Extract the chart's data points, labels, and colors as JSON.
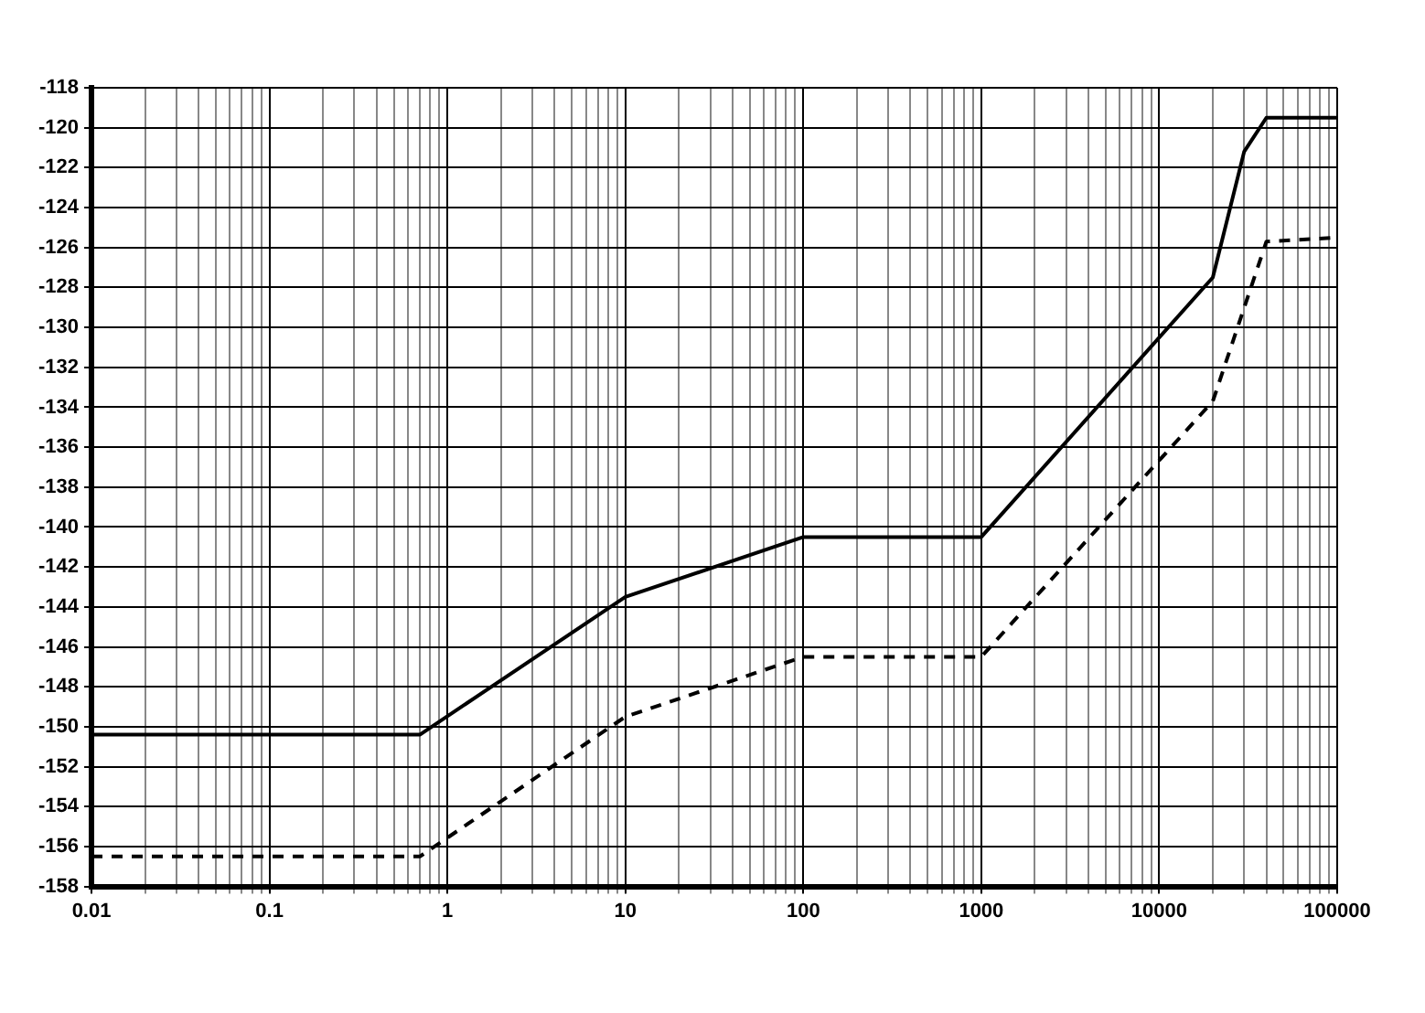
{
  "chart_data": {
    "type": "line",
    "log": "x",
    "grid": true,
    "legend": false,
    "marker": "none",
    "xlim": [
      0.01,
      100000
    ],
    "xticks": [
      0.01,
      {
        "value": 0.02,
        "label": null
      },
      {
        "value": 0.03,
        "label": null
      },
      {
        "value": 0.04,
        "label": null
      },
      {
        "value": 0.05,
        "label": null
      },
      {
        "value": 0.06,
        "label": null
      },
      {
        "value": 0.07,
        "label": null
      },
      {
        "value": 0.08,
        "label": null
      },
      {
        "value": 0.09,
        "label": null
      },
      0.1,
      {
        "value": 0.2,
        "label": null
      },
      {
        "value": 0.3,
        "label": null
      },
      {
        "value": 0.4,
        "label": null
      },
      {
        "value": 0.5,
        "label": null
      },
      {
        "value": 0.6,
        "label": null
      },
      {
        "value": 0.7,
        "label": null
      },
      {
        "value": 0.8,
        "label": null
      },
      {
        "value": 0.9,
        "label": null
      },
      1,
      {
        "value": 2,
        "label": null
      },
      {
        "value": 3,
        "label": null
      },
      {
        "value": 4,
        "label": null
      },
      {
        "value": 5,
        "label": null
      },
      {
        "value": 6,
        "label": null
      },
      {
        "value": 7,
        "label": null
      },
      {
        "value": 8,
        "label": null
      },
      {
        "value": 9,
        "label": null
      },
      10,
      {
        "value": 20,
        "label": null
      },
      {
        "value": 30,
        "label": null
      },
      {
        "value": 40,
        "label": null
      },
      {
        "value": 50,
        "label": null
      },
      {
        "value": 60,
        "label": null
      },
      {
        "value": 70,
        "label": null
      },
      {
        "value": 80,
        "label": null
      },
      {
        "value": 90,
        "label": null
      },
      100,
      {
        "value": 200,
        "label": null
      },
      {
        "value": 300,
        "label": null
      },
      {
        "value": 400,
        "label": null
      },
      {
        "value": 500,
        "label": null
      },
      {
        "value": 600,
        "label": null
      },
      {
        "value": 700,
        "label": null
      },
      {
        "value": 800,
        "label": null
      },
      {
        "value": 900,
        "label": null
      },
      1000,
      {
        "value": 2000,
        "label": null
      },
      {
        "value": 3000,
        "label": null
      },
      {
        "value": 4000,
        "label": null
      },
      {
        "value": 5000,
        "label": null
      },
      {
        "value": 6000,
        "label": null
      },
      {
        "value": 7000,
        "label": null
      },
      {
        "value": 8000,
        "label": null
      },
      {
        "value": 9000,
        "label": null
      },
      10000,
      {
        "value": 20000,
        "label": null
      },
      {
        "value": 30000,
        "label": null
      },
      {
        "value": 40000,
        "label": null
      },
      {
        "value": 50000,
        "label": null
      },
      {
        "value": 60000,
        "label": null
      },
      {
        "value": 70000,
        "label": null
      },
      {
        "value": 80000,
        "label": null
      },
      {
        "value": 90000,
        "label": null
      },
      100000
    ],
    "ylim": [
      -158,
      -118
    ],
    "yticks": [
      -158,
      -156,
      -154,
      -152,
      -150,
      -148,
      -146,
      -144,
      -142,
      -140,
      -138,
      -136,
      -134,
      -132,
      -130,
      -128,
      -126,
      -124,
      -122,
      -120,
      -118
    ],
    "series": [
      {
        "color": "#000000",
        "line_style": "dashed",
        "x": [
          0.01,
          0.7,
          10,
          100,
          1000,
          20000,
          40000,
          100000
        ],
        "values": [
          -156.5,
          -156.5,
          -149.5,
          -146.5,
          -146.5,
          -133.7,
          -125.7,
          -125.5
        ]
      },
      {
        "color": "#000000",
        "line_style": "solid",
        "x": [
          0.01,
          0.7,
          10,
          100,
          1000,
          20000,
          30000,
          40000,
          100000
        ],
        "values": [
          -150.4,
          -150.4,
          -143.5,
          -140.5,
          -140.5,
          -127.5,
          -121.2,
          -119.5,
          -119.5
        ]
      }
    ]
  }
}
